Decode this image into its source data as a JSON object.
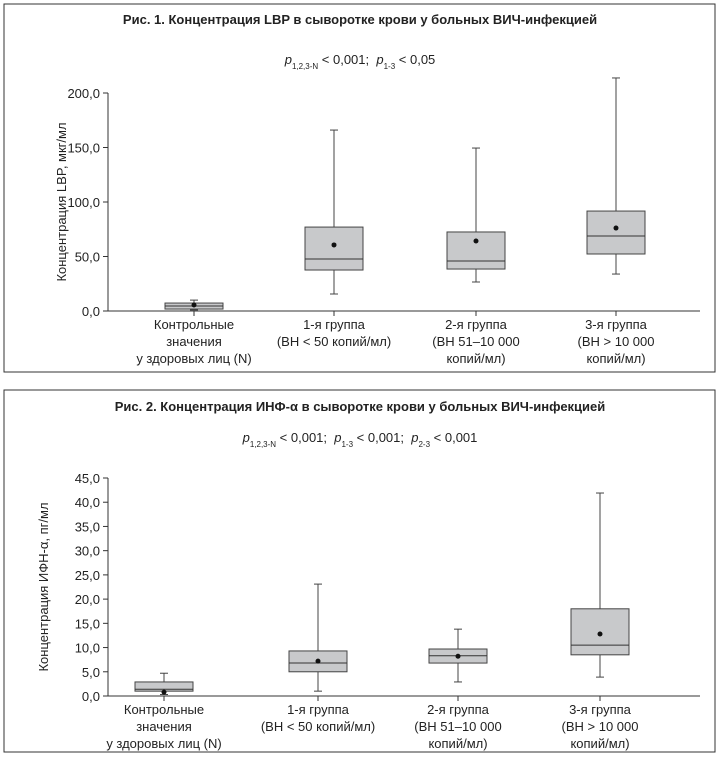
{
  "chart_data": [
    {
      "type": "box",
      "title": "Рис. 1. Концентрация LBP в сыворотке крови у больных ВИЧ-инфекцией",
      "subtitle_parts": [
        {
          "p": "p",
          "sub": "1,2,3-N",
          "text": " < 0,001;  "
        },
        {
          "p": "p",
          "sub": "1-3",
          "text": " < 0,05"
        }
      ],
      "ylabel": "Концентрация LBP, мкг/мл",
      "categories": [
        [
          "Контрольные",
          "значения",
          "у здоровых лиц (N)"
        ],
        [
          "1-я группа",
          "(ВН < 50 копий/мл)"
        ],
        [
          "2-я группа",
          "(ВН 51–10 000",
          "копий/мл)"
        ],
        [
          "3-я группа",
          "(ВН > 10 000",
          "копий/мл)"
        ]
      ],
      "whisker_low": [
        1,
        15.6,
        26.6,
        33.9
      ],
      "q1": [
        1.8,
        37.6,
        38.5,
        52.3
      ],
      "median": [
        4.6,
        47.7,
        45.9,
        68.8
      ],
      "q3": [
        7.3,
        77,
        72.5,
        91.7
      ],
      "whisker_high": [
        10,
        166,
        149.5,
        213.8
      ],
      "mean": [
        5.5,
        60.6,
        64.2,
        76.1
      ],
      "color": "#c8c9cb",
      "ylim": [
        0,
        200
      ],
      "yticks": [
        {
          "value": 0,
          "label": "0,0"
        },
        {
          "value": 50,
          "label": "50,0"
        },
        {
          "value": 100,
          "label": "100,0"
        },
        {
          "value": 150,
          "label": "150,0"
        },
        {
          "value": 200,
          "label": "200,0"
        }
      ]
    },
    {
      "type": "box",
      "title": "Рис. 2. Концентрация ИНФ-α в сыворотке крови у больных ВИЧ-инфекцией",
      "subtitle_parts": [
        {
          "p": "p",
          "sub": "1,2,3-N",
          "text": " < 0,001;  "
        },
        {
          "p": "p",
          "sub": "1-3",
          "text": " < 0,001;  "
        },
        {
          "p": "p",
          "sub": "2-3",
          "text": " < 0,001"
        }
      ],
      "ylabel": "Концентрация ИФН-α, пг/мл",
      "categories": [
        [
          "Контрольные",
          "значения",
          "у здоровых лиц (N)"
        ],
        [
          "1-я группа",
          "(ВН < 50 копий/мл)"
        ],
        [
          "2-я группа",
          "(ВН 51–10 000",
          "копий/мл)"
        ],
        [
          "3-я группа",
          "(ВН > 10 000",
          "копий/мл)"
        ]
      ],
      "whisker_low": [
        0.3,
        1.0,
        2.9,
        3.9
      ],
      "q1": [
        1.0,
        5.0,
        6.8,
        8.5
      ],
      "median": [
        1.4,
        6.8,
        8.3,
        10.5
      ],
      "q3": [
        2.9,
        9.3,
        9.7,
        18.0
      ],
      "whisker_high": [
        4.7,
        23.1,
        13.8,
        41.9
      ],
      "mean": [
        0.8,
        7.2,
        8.2,
        12.8
      ],
      "color": "#c8c9cb",
      "ylim": [
        0,
        45
      ],
      "yticks": [
        {
          "value": 0,
          "label": "0,0"
        },
        {
          "value": 5,
          "label": "5,0"
        },
        {
          "value": 10,
          "label": "10,0"
        },
        {
          "value": 15,
          "label": "15,0"
        },
        {
          "value": 20,
          "label": "20,0"
        },
        {
          "value": 25,
          "label": "25,0"
        },
        {
          "value": 30,
          "label": "30,0"
        },
        {
          "value": 35,
          "label": "35,0"
        },
        {
          "value": 40,
          "label": "40,0"
        },
        {
          "value": 45,
          "label": "45,0"
        }
      ]
    }
  ]
}
